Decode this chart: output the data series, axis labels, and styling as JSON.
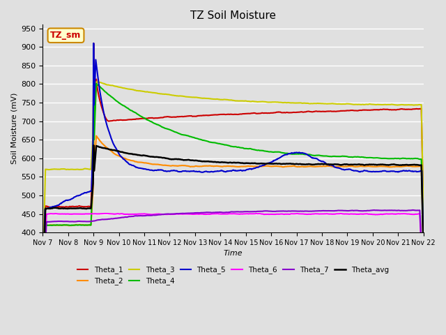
{
  "title": "TZ Soil Moisture",
  "xlabel": "Time",
  "ylabel": "Soil Moisture (mV)",
  "ylim": [
    400,
    960
  ],
  "yticks": [
    400,
    450,
    500,
    550,
    600,
    650,
    700,
    750,
    800,
    850,
    900,
    950
  ],
  "plot_bg_color": "#e0e0e0",
  "grid_color": "#ffffff",
  "series": {
    "Theta_1": {
      "color": "#cc0000",
      "linewidth": 1.5
    },
    "Theta_2": {
      "color": "#ff8c00",
      "linewidth": 1.5
    },
    "Theta_3": {
      "color": "#cccc00",
      "linewidth": 1.5
    },
    "Theta_4": {
      "color": "#00bb00",
      "linewidth": 1.5
    },
    "Theta_5": {
      "color": "#0000cc",
      "linewidth": 1.5
    },
    "Theta_6": {
      "color": "#ff00ff",
      "linewidth": 1.5
    },
    "Theta_7": {
      "color": "#8800cc",
      "linewidth": 1.5
    },
    "Theta_avg": {
      "color": "#000000",
      "linewidth": 1.8
    }
  },
  "xtick_labels": [
    "Nov 7",
    "Nov 8",
    "Nov 9",
    "Nov 10",
    "Nov 11",
    "Nov 12",
    "Nov 13",
    "Nov 14",
    "Nov 15",
    "Nov 16",
    "Nov 17",
    "Nov 18",
    "Nov 19",
    "Nov 20",
    "Nov 21",
    "Nov 22"
  ],
  "legend_box": {
    "text": "TZ_sm",
    "facecolor": "#ffffcc",
    "edgecolor": "#cc8800",
    "textcolor": "#cc0000"
  },
  "n_days": 15,
  "pts_per_day": 48
}
